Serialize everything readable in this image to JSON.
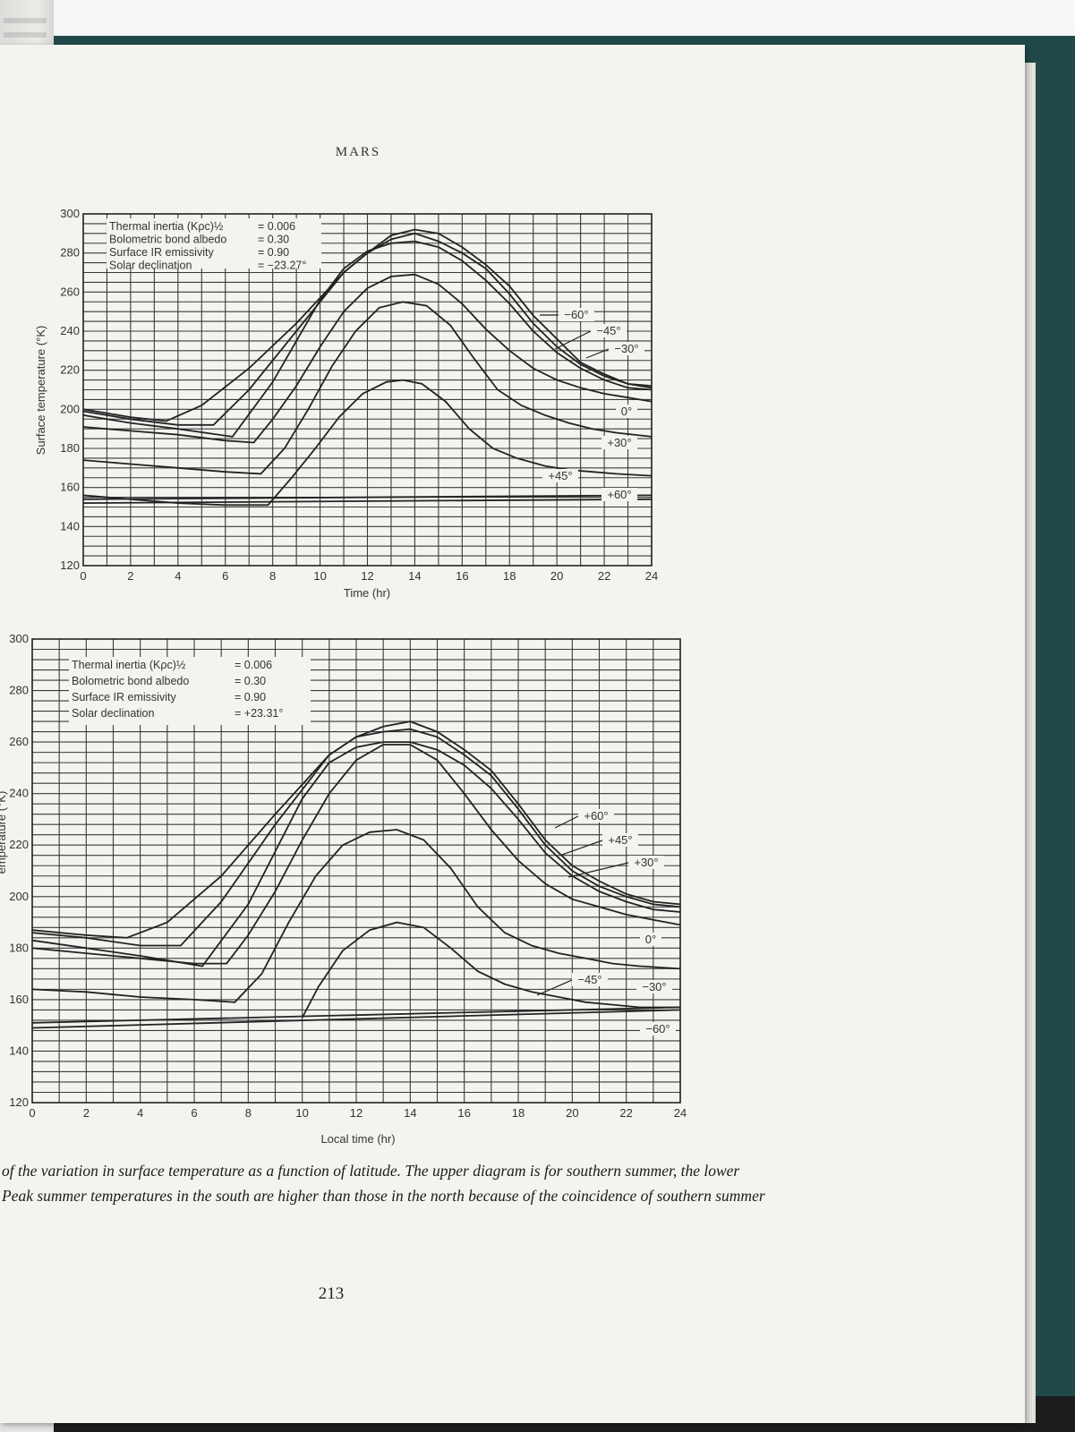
{
  "page": {
    "running_head": "MARS",
    "page_number": "213",
    "caption_lines": [
      "of the variation in surface temperature as a function of latitude. The upper diagram is for southern summer, the lower",
      "Peak summer temperatures in the south are higher than those in the north because of the coincidence of southern summer"
    ]
  },
  "chart_data": [
    {
      "type": "line",
      "xlabel": "Time (hr)",
      "ylabel": "Surface temperature (°K)",
      "xlim": [
        0,
        24
      ],
      "ylim": [
        120,
        300
      ],
      "xticks": [
        0,
        2,
        4,
        6,
        8,
        10,
        12,
        14,
        16,
        18,
        20,
        22,
        24
      ],
      "yticks": [
        120,
        140,
        160,
        180,
        200,
        220,
        240,
        260,
        280,
        300
      ],
      "grid": true,
      "annotations": [
        {
          "label": "Thermal inertia (Kρc)½",
          "value": "= 0.006"
        },
        {
          "label": "Bolometric bond albedo",
          "value": "= 0.30"
        },
        {
          "label": "Surface IR emissivity",
          "value": "= 0.90"
        },
        {
          "label": "Solar declination",
          "value": "= −23.27°"
        }
      ],
      "series": [
        {
          "name": "−60°",
          "x": [
            0,
            2,
            3.5,
            5,
            7,
            9,
            11,
            12,
            13,
            14,
            15,
            16,
            17,
            18,
            19,
            20,
            21,
            22,
            23,
            24
          ],
          "y": [
            200,
            196,
            194,
            202,
            221,
            244,
            270,
            280,
            289,
            292,
            290,
            283,
            274,
            263,
            248,
            236,
            224,
            218,
            213,
            211
          ]
        },
        {
          "name": "−45°",
          "x": [
            0,
            2,
            4,
            5.5,
            7,
            9,
            11,
            12,
            13,
            14,
            15,
            16,
            17,
            18,
            19,
            20,
            21,
            22,
            23,
            24
          ],
          "y": [
            199,
            195,
            192,
            192,
            210,
            240,
            270,
            280,
            287,
            290,
            286,
            280,
            272,
            259,
            244,
            232,
            223,
            217,
            213,
            212
          ]
        },
        {
          "name": "−30°",
          "x": [
            0,
            2,
            4,
            6.3,
            8,
            10,
            11,
            12,
            13,
            14,
            15,
            16,
            17,
            18,
            19,
            20,
            21,
            22,
            23,
            24
          ],
          "y": [
            197,
            193,
            190,
            186,
            214,
            256,
            272,
            281,
            285,
            286,
            283,
            276,
            266,
            254,
            240,
            229,
            221,
            215,
            211,
            210
          ]
        },
        {
          "name": "0°",
          "x": [
            0,
            2,
            4,
            6,
            7.2,
            8,
            9,
            10,
            11,
            12,
            13,
            14,
            15,
            16,
            17,
            18,
            19,
            20,
            21,
            22,
            23,
            24
          ],
          "y": [
            191,
            189,
            187,
            184,
            183,
            195,
            212,
            232,
            250,
            262,
            268,
            269,
            264,
            254,
            241,
            230,
            221,
            215,
            211,
            208,
            206,
            204
          ]
        },
        {
          "name": "+30°",
          "x": [
            0,
            2,
            4,
            6,
            7.5,
            8.5,
            9.5,
            10.5,
            11.5,
            12.5,
            13.5,
            14.5,
            15.5,
            16.5,
            17.5,
            18.5,
            19.5,
            20.5,
            21.5,
            22.5,
            24
          ],
          "y": [
            174,
            172,
            170,
            168,
            167,
            180,
            200,
            222,
            240,
            252,
            255,
            253,
            243,
            226,
            210,
            202,
            197,
            193,
            190,
            188,
            186
          ]
        },
        {
          "name": "+45°",
          "x": [
            0,
            2,
            4,
            6,
            7.8,
            8.8,
            9.8,
            10.8,
            11.8,
            12.8,
            13.5,
            14.3,
            15.3,
            16.3,
            17.3,
            18.3,
            19.5,
            20.5,
            21.5,
            22.5,
            24
          ],
          "y": [
            156,
            154,
            152,
            151,
            151,
            165,
            180,
            196,
            208,
            214,
            215,
            213,
            204,
            190,
            180,
            175,
            171,
            169,
            168,
            167,
            166
          ]
        },
        {
          "name": "+60°",
          "x": [
            0,
            24
          ],
          "y": [
            154,
            156
          ]
        },
        {
          "name": "",
          "x": [
            0,
            24
          ],
          "y": [
            152,
            154
          ]
        }
      ]
    },
    {
      "type": "line",
      "xlabel": "Local time (hr)",
      "ylabel": "emperature (°K)",
      "xlim": [
        0,
        24
      ],
      "ylim": [
        120,
        300
      ],
      "xticks": [
        0,
        2,
        4,
        6,
        8,
        10,
        12,
        14,
        16,
        18,
        20,
        22,
        24
      ],
      "yticks": [
        120,
        140,
        160,
        180,
        200,
        220,
        240,
        260,
        280,
        300
      ],
      "grid": true,
      "annotations": [
        {
          "label": "Thermal inertia (Kρc)½",
          "value": "= 0.006"
        },
        {
          "label": "Bolometric bond albedo",
          "value": "= 0.30"
        },
        {
          "label": "Surface IR emissivity",
          "value": "= 0.90"
        },
        {
          "label": "Solar declination",
          "value": "= +23.31°"
        }
      ],
      "series": [
        {
          "name": "+60°",
          "x": [
            0,
            2,
            3.5,
            5,
            7,
            9,
            11,
            12,
            13,
            14,
            15,
            16,
            17,
            18,
            19,
            20,
            21,
            22,
            23,
            24
          ],
          "y": [
            187,
            185,
            184,
            190,
            208,
            232,
            255,
            262,
            266,
            268,
            264,
            257,
            249,
            236,
            222,
            212,
            206,
            201,
            198,
            197
          ]
        },
        {
          "name": "+45°",
          "x": [
            0,
            2,
            4,
            5.5,
            7,
            9,
            11,
            12,
            13,
            14,
            15,
            16,
            17,
            18,
            19,
            20,
            21,
            22,
            23,
            24
          ],
          "y": [
            186,
            184,
            181,
            181,
            198,
            228,
            255,
            262,
            264,
            265,
            262,
            255,
            247,
            234,
            220,
            210,
            204,
            200,
            197,
            196
          ]
        },
        {
          "name": "+30°",
          "x": [
            0,
            2,
            4,
            6.3,
            8,
            10,
            11,
            12,
            13,
            14,
            15,
            16,
            17,
            18,
            19,
            20,
            21,
            22,
            23,
            24
          ],
          "y": [
            183,
            180,
            177,
            173,
            197,
            238,
            252,
            258,
            260,
            260,
            257,
            251,
            242,
            230,
            217,
            208,
            202,
            198,
            195,
            194
          ]
        },
        {
          "name": "0°",
          "x": [
            0,
            2,
            4,
            6,
            7.2,
            8,
            9,
            10,
            11,
            12,
            13,
            14,
            15,
            16,
            17,
            18,
            19,
            20,
            21,
            22,
            23,
            24
          ],
          "y": [
            180,
            178,
            176,
            174,
            174,
            185,
            202,
            222,
            240,
            253,
            259,
            259,
            253,
            240,
            226,
            214,
            205,
            199,
            196,
            193,
            191,
            189
          ]
        },
        {
          "name": "−30°",
          "x": [
            0,
            2,
            4,
            6,
            7.5,
            8.5,
            9.5,
            10.5,
            11.5,
            12.5,
            13.5,
            14.5,
            15.5,
            16.5,
            17.5,
            18.5,
            19.5,
            20.5,
            21.5,
            22.5,
            24
          ],
          "y": [
            164,
            163,
            161,
            160,
            159,
            170,
            190,
            208,
            220,
            225,
            226,
            222,
            211,
            196,
            186,
            181,
            178,
            176,
            174,
            173,
            172
          ]
        },
        {
          "name": "−45°",
          "x": [
            10,
            10.6,
            11.5,
            12.5,
            13.5,
            14.5,
            15.5,
            16.5,
            17.5,
            18.5,
            19.5,
            20.5,
            21.5,
            22.5,
            24
          ],
          "y": [
            153,
            165,
            179,
            187,
            190,
            188,
            180,
            171,
            166,
            163,
            161,
            159,
            158,
            157,
            157
          ]
        },
        {
          "name": "−60°",
          "x": [
            0,
            24
          ],
          "y": [
            149,
            156
          ]
        },
        {
          "name": "",
          "x": [
            0,
            24
          ],
          "y": [
            151,
            157
          ]
        }
      ]
    }
  ]
}
